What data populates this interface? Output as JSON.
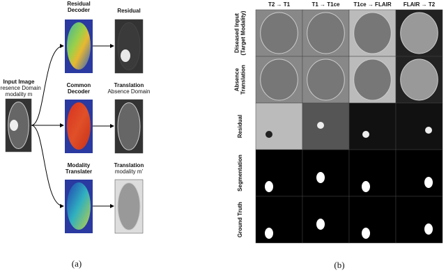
{
  "panel_a": {
    "input_title": "Input Image",
    "input_lines": [
      "Presence Domain",
      "modality m"
    ],
    "branches": [
      {
        "module_lines": [
          "Residual",
          "Decoder"
        ],
        "output_title": "Residual"
      },
      {
        "module_lines": [
          "Common",
          "Decoder"
        ],
        "output_title": "Translation",
        "output_subtitle": "Absence Domain"
      },
      {
        "module_lines": [
          "Modality",
          "Translater"
        ],
        "output_title": "Translation",
        "output_subtitle": "modality m'"
      }
    ],
    "caption": "(a)"
  },
  "panel_b": {
    "columns": [
      "T2 → T1",
      "T1 → T1ce",
      "T1ce → FLAIR",
      "FLAIR → T2"
    ],
    "rows": [
      {
        "lines": [
          "Diseased Input",
          "(Target Modality)"
        ]
      },
      {
        "lines": [
          "Absence",
          "Translation"
        ]
      },
      {
        "lines": [
          "Residual"
        ]
      },
      {
        "lines": [
          "Segmentation"
        ]
      },
      {
        "lines": [
          "Ground Truth"
        ]
      }
    ],
    "caption": "(b)"
  }
}
